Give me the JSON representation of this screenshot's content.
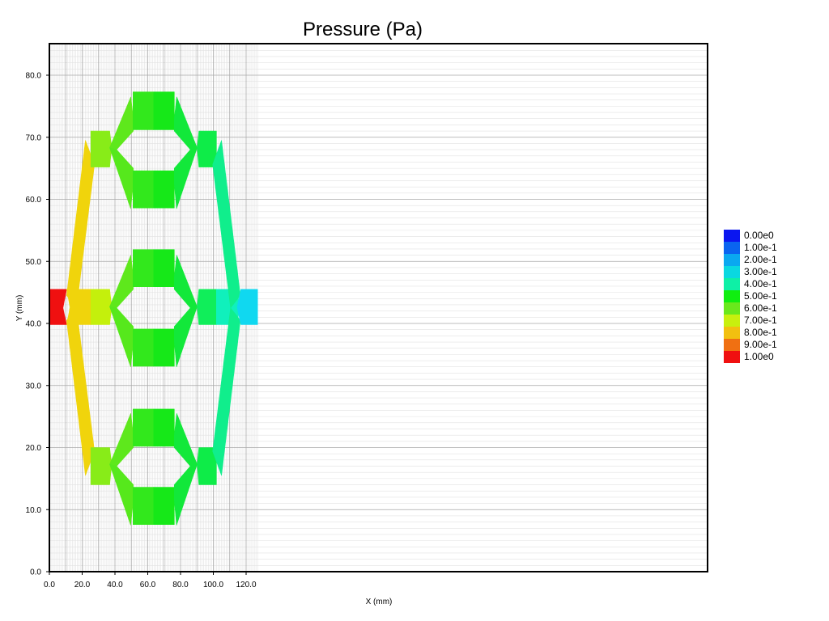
{
  "chart_data": {
    "type": "heatmap",
    "title": "Pressure (Pa)",
    "xlabel": "X (mm)",
    "ylabel": "Y (mm)",
    "xlim": [
      0,
      127
    ],
    "ylim": [
      0,
      85
    ],
    "x_ticks": [
      0,
      20,
      40,
      60,
      80,
      100,
      120
    ],
    "x_tick_labels": [
      "0.0",
      "20.0",
      "40.0",
      "60.0",
      "80.0",
      "100.0",
      "120.0"
    ],
    "y_ticks": [
      0,
      10,
      20,
      30,
      40,
      50,
      60,
      70,
      80
    ],
    "y_tick_labels": [
      "0.0",
      "10.0",
      "20.0",
      "30.0",
      "40.0",
      "50.0",
      "60.0",
      "70.0",
      "80.0"
    ],
    "grid": true,
    "legend": {
      "placement": "right",
      "entries": [
        {
          "label": "0.00e0",
          "color": "#0a16f0"
        },
        {
          "label": "1.00e-1",
          "color": "#0a64f0"
        },
        {
          "label": "2.00e-1",
          "color": "#0aa8f0"
        },
        {
          "label": "3.00e-1",
          "color": "#0ad8e0"
        },
        {
          "label": "4.00e-1",
          "color": "#0ef0a6"
        },
        {
          "label": "5.00e-1",
          "color": "#10ee10"
        },
        {
          "label": "6.00e-1",
          "color": "#6ae81c"
        },
        {
          "label": "7.00e-1",
          "color": "#c8f00e"
        },
        {
          "label": "8.00e-1",
          "color": "#f2c010"
        },
        {
          "label": "9.00e-1",
          "color": "#f07012"
        },
        {
          "label": "1.00e0",
          "color": "#f01010"
        }
      ]
    },
    "regions": [
      {
        "name": "inlet-channel",
        "pressure": 1.0,
        "color": "#f01010",
        "points": [
          [
            0,
            39.8
          ],
          [
            10.5,
            39.8
          ],
          [
            8.3,
            42.5
          ],
          [
            10.5,
            45.5
          ],
          [
            0,
            45.5
          ]
        ]
      },
      {
        "name": "upper-left-diagonal",
        "pressure": 0.78,
        "color": "#f0d40c",
        "points": [
          [
            10.5,
            44.5
          ],
          [
            22,
            69.5
          ],
          [
            27.5,
            65.6
          ],
          [
            16.5,
            42.5
          ]
        ]
      },
      {
        "name": "lower-left-diagonal",
        "pressure": 0.78,
        "color": "#f0d40c",
        "points": [
          [
            10.5,
            40.5
          ],
          [
            22,
            15.5
          ],
          [
            27.5,
            19.4
          ],
          [
            16.5,
            42.5
          ]
        ]
      },
      {
        "name": "middle-left-junction",
        "pressure": 0.78,
        "color": "#f0d40c",
        "points": [
          [
            10.5,
            45.5
          ],
          [
            25.3,
            45.5
          ],
          [
            25.3,
            39.8
          ],
          [
            10.5,
            39.8
          ],
          [
            12.6,
            42.6
          ]
        ]
      },
      {
        "name": "mid-left-channel",
        "pressure": 0.68,
        "color": "#c4f00c",
        "points": [
          [
            25.3,
            45.5
          ],
          [
            36.8,
            45.5
          ],
          [
            38,
            42.7
          ],
          [
            36.8,
            39.8
          ],
          [
            25.3,
            39.8
          ]
        ]
      },
      {
        "name": "top-left-channel",
        "pressure": 0.64,
        "color": "#88ec18",
        "points": [
          [
            25.3,
            71
          ],
          [
            36.8,
            71
          ],
          [
            38,
            68.3
          ],
          [
            36.8,
            65.2
          ],
          [
            25.3,
            65.2
          ]
        ]
      },
      {
        "name": "bottom-left-channel",
        "pressure": 0.64,
        "color": "#88ec18",
        "points": [
          [
            25.3,
            20
          ],
          [
            36.8,
            20
          ],
          [
            38,
            17.3
          ],
          [
            36.8,
            14
          ],
          [
            25.3,
            14
          ]
        ]
      },
      {
        "name": "top-upper-left-arm",
        "pressure": 0.6,
        "color": "#5ee81c",
        "points": [
          [
            36.8,
            68.3
          ],
          [
            49.7,
            76.5
          ],
          [
            51.2,
            73
          ],
          [
            51.2,
            71
          ],
          [
            41,
            68
          ]
        ]
      },
      {
        "name": "top-lower-left-arm",
        "pressure": 0.58,
        "color": "#56e81c",
        "points": [
          [
            36.8,
            68.3
          ],
          [
            41,
            68
          ],
          [
            51.2,
            65
          ],
          [
            51.2,
            62.5
          ],
          [
            49.6,
            58.5
          ]
        ]
      },
      {
        "name": "mid-upper-left-arm",
        "pressure": 0.6,
        "color": "#5ee81c",
        "points": [
          [
            36.8,
            42.7
          ],
          [
            49.7,
            51
          ],
          [
            51.2,
            47.5
          ],
          [
            51.2,
            45.5
          ],
          [
            41,
            42.5
          ]
        ]
      },
      {
        "name": "mid-lower-left-arm",
        "pressure": 0.58,
        "color": "#56e81c",
        "points": [
          [
            36.8,
            42.7
          ],
          [
            41,
            42.5
          ],
          [
            51.2,
            39.5
          ],
          [
            51.2,
            37
          ],
          [
            49.6,
            33
          ]
        ]
      },
      {
        "name": "bot-upper-left-arm",
        "pressure": 0.6,
        "color": "#5ee81c",
        "points": [
          [
            36.8,
            17.3
          ],
          [
            49.7,
            25.5
          ],
          [
            51.2,
            22
          ],
          [
            51.2,
            20
          ],
          [
            41,
            17
          ]
        ]
      },
      {
        "name": "bot-lower-left-arm",
        "pressure": 0.58,
        "color": "#56e81c",
        "points": [
          [
            36.8,
            17.3
          ],
          [
            41,
            17
          ],
          [
            51.2,
            14
          ],
          [
            51.2,
            11.5
          ],
          [
            49.6,
            7.5
          ]
        ]
      },
      {
        "name": "top-upper-channel-a",
        "pressure": 0.54,
        "color": "#32e81c",
        "points": [
          [
            51,
            77.3
          ],
          [
            63.6,
            77.3
          ],
          [
            63.6,
            71.2
          ],
          [
            51,
            71.2
          ]
        ]
      },
      {
        "name": "top-upper-channel-b",
        "pressure": 0.52,
        "color": "#16e818",
        "points": [
          [
            63.6,
            77.3
          ],
          [
            76.2,
            77.3
          ],
          [
            76.2,
            71.2
          ],
          [
            63.6,
            71.2
          ]
        ]
      },
      {
        "name": "top-lower-channel-a",
        "pressure": 0.54,
        "color": "#32e81c",
        "points": [
          [
            51,
            64.6
          ],
          [
            63.6,
            64.6
          ],
          [
            63.6,
            58.6
          ],
          [
            51,
            58.6
          ]
        ]
      },
      {
        "name": "top-lower-channel-b",
        "pressure": 0.52,
        "color": "#16e818",
        "points": [
          [
            63.6,
            64.6
          ],
          [
            76.2,
            64.6
          ],
          [
            76.2,
            58.6
          ],
          [
            63.6,
            58.6
          ]
        ]
      },
      {
        "name": "mid-upper-channel-a",
        "pressure": 0.54,
        "color": "#32e81c",
        "points": [
          [
            51,
            51.9
          ],
          [
            63.6,
            51.9
          ],
          [
            63.6,
            45.9
          ],
          [
            51,
            45.9
          ]
        ]
      },
      {
        "name": "mid-upper-channel-b",
        "pressure": 0.52,
        "color": "#16e818",
        "points": [
          [
            63.6,
            51.9
          ],
          [
            76.2,
            51.9
          ],
          [
            76.2,
            45.9
          ],
          [
            63.6,
            45.9
          ]
        ]
      },
      {
        "name": "mid-lower-channel-a",
        "pressure": 0.54,
        "color": "#32e81c",
        "points": [
          [
            51,
            39.1
          ],
          [
            63.6,
            39.1
          ],
          [
            63.6,
            33.1
          ],
          [
            51,
            33.1
          ]
        ]
      },
      {
        "name": "mid-lower-channel-b",
        "pressure": 0.52,
        "color": "#16e818",
        "points": [
          [
            63.6,
            39.1
          ],
          [
            76.2,
            39.1
          ],
          [
            76.2,
            33.1
          ],
          [
            63.6,
            33.1
          ]
        ]
      },
      {
        "name": "bot-upper-channel-a",
        "pressure": 0.54,
        "color": "#32e81c",
        "points": [
          [
            51,
            26.2
          ],
          [
            63.6,
            26.2
          ],
          [
            63.6,
            20.2
          ],
          [
            51,
            20.2
          ]
        ]
      },
      {
        "name": "bot-upper-channel-b",
        "pressure": 0.52,
        "color": "#16e818",
        "points": [
          [
            63.6,
            26.2
          ],
          [
            76.2,
            26.2
          ],
          [
            76.2,
            20.2
          ],
          [
            63.6,
            20.2
          ]
        ]
      },
      {
        "name": "bot-lower-channel-a",
        "pressure": 0.54,
        "color": "#32e81c",
        "points": [
          [
            51,
            13.6
          ],
          [
            63.6,
            13.6
          ],
          [
            63.6,
            7.6
          ],
          [
            51,
            7.6
          ]
        ]
      },
      {
        "name": "bot-lower-channel-b",
        "pressure": 0.52,
        "color": "#16e818",
        "points": [
          [
            63.6,
            13.6
          ],
          [
            76.2,
            13.6
          ],
          [
            76.2,
            7.6
          ],
          [
            63.6,
            7.6
          ]
        ]
      },
      {
        "name": "top-upper-right-arm",
        "pressure": 0.48,
        "color": "#12e83a",
        "points": [
          [
            76.2,
            73
          ],
          [
            77.7,
            76.5
          ],
          [
            90.1,
            68.3
          ],
          [
            86,
            68
          ],
          [
            76.2,
            71
          ]
        ]
      },
      {
        "name": "top-lower-right-arm",
        "pressure": 0.48,
        "color": "#12e83a",
        "points": [
          [
            76.2,
            65
          ],
          [
            86,
            68
          ],
          [
            90.1,
            68.3
          ],
          [
            77.6,
            58.5
          ],
          [
            76.2,
            62.5
          ]
        ]
      },
      {
        "name": "mid-upper-right-arm",
        "pressure": 0.48,
        "color": "#12e83a",
        "points": [
          [
            76.2,
            47.5
          ],
          [
            77.7,
            51
          ],
          [
            90.1,
            42.7
          ],
          [
            86,
            42.5
          ],
          [
            76.2,
            45.5
          ]
        ]
      },
      {
        "name": "mid-lower-right-arm",
        "pressure": 0.48,
        "color": "#12e83a",
        "points": [
          [
            76.2,
            39.5
          ],
          [
            86,
            42.5
          ],
          [
            90.1,
            42.7
          ],
          [
            77.6,
            33
          ],
          [
            76.2,
            37
          ]
        ]
      },
      {
        "name": "bot-upper-right-arm",
        "pressure": 0.48,
        "color": "#12e83a",
        "points": [
          [
            76.2,
            22
          ],
          [
            77.7,
            25.5
          ],
          [
            90.1,
            17.3
          ],
          [
            86,
            17
          ],
          [
            76.2,
            20
          ]
        ]
      },
      {
        "name": "bot-lower-right-arm",
        "pressure": 0.48,
        "color": "#12e83a",
        "points": [
          [
            76.2,
            14
          ],
          [
            86,
            17
          ],
          [
            90.1,
            17.3
          ],
          [
            77.6,
            7.5
          ],
          [
            76.2,
            11.5
          ]
        ]
      },
      {
        "name": "top-right-channel",
        "pressure": 0.46,
        "color": "#0eec48",
        "points": [
          [
            90.1,
            68.3
          ],
          [
            91.2,
            71
          ],
          [
            101.9,
            71
          ],
          [
            101.9,
            65.2
          ],
          [
            91.2,
            65.2
          ]
        ]
      },
      {
        "name": "mid-right-channel",
        "pressure": 0.44,
        "color": "#10ee5a",
        "points": [
          [
            90.1,
            42.7
          ],
          [
            91.2,
            45.5
          ],
          [
            101.9,
            45.5
          ],
          [
            101.9,
            39.8
          ],
          [
            91.2,
            39.8
          ]
        ]
      },
      {
        "name": "bottom-right-channel",
        "pressure": 0.46,
        "color": "#0eec48",
        "points": [
          [
            90.1,
            17.3
          ],
          [
            91.2,
            20
          ],
          [
            101.9,
            20
          ],
          [
            101.9,
            14
          ],
          [
            91.2,
            14
          ]
        ]
      },
      {
        "name": "mid-right-junction",
        "pressure": 0.38,
        "color": "#10f0bc",
        "points": [
          [
            101.9,
            45.5
          ],
          [
            114,
            45.5
          ],
          [
            116.5,
            42.6
          ],
          [
            114,
            39.8
          ],
          [
            101.9,
            39.8
          ]
        ]
      },
      {
        "name": "upper-right-diagonal",
        "pressure": 0.4,
        "color": "#10ee8c",
        "points": [
          [
            99.6,
            65.6
          ],
          [
            105,
            69.5
          ],
          [
            116.5,
            44.5
          ],
          [
            110.5,
            42.5
          ]
        ]
      },
      {
        "name": "lower-right-diagonal",
        "pressure": 0.4,
        "color": "#10ee8c",
        "points": [
          [
            99.6,
            19.4
          ],
          [
            105,
            15.5
          ],
          [
            116.5,
            40.5
          ],
          [
            110.5,
            42.5
          ]
        ]
      },
      {
        "name": "outlet-channel",
        "pressure": 0.24,
        "color": "#10d8f0",
        "points": [
          [
            114.5,
            42.6
          ],
          [
            116.8,
            45.5
          ],
          [
            127,
            45.5
          ],
          [
            127,
            39.8
          ],
          [
            116.8,
            39.8
          ]
        ]
      }
    ]
  }
}
